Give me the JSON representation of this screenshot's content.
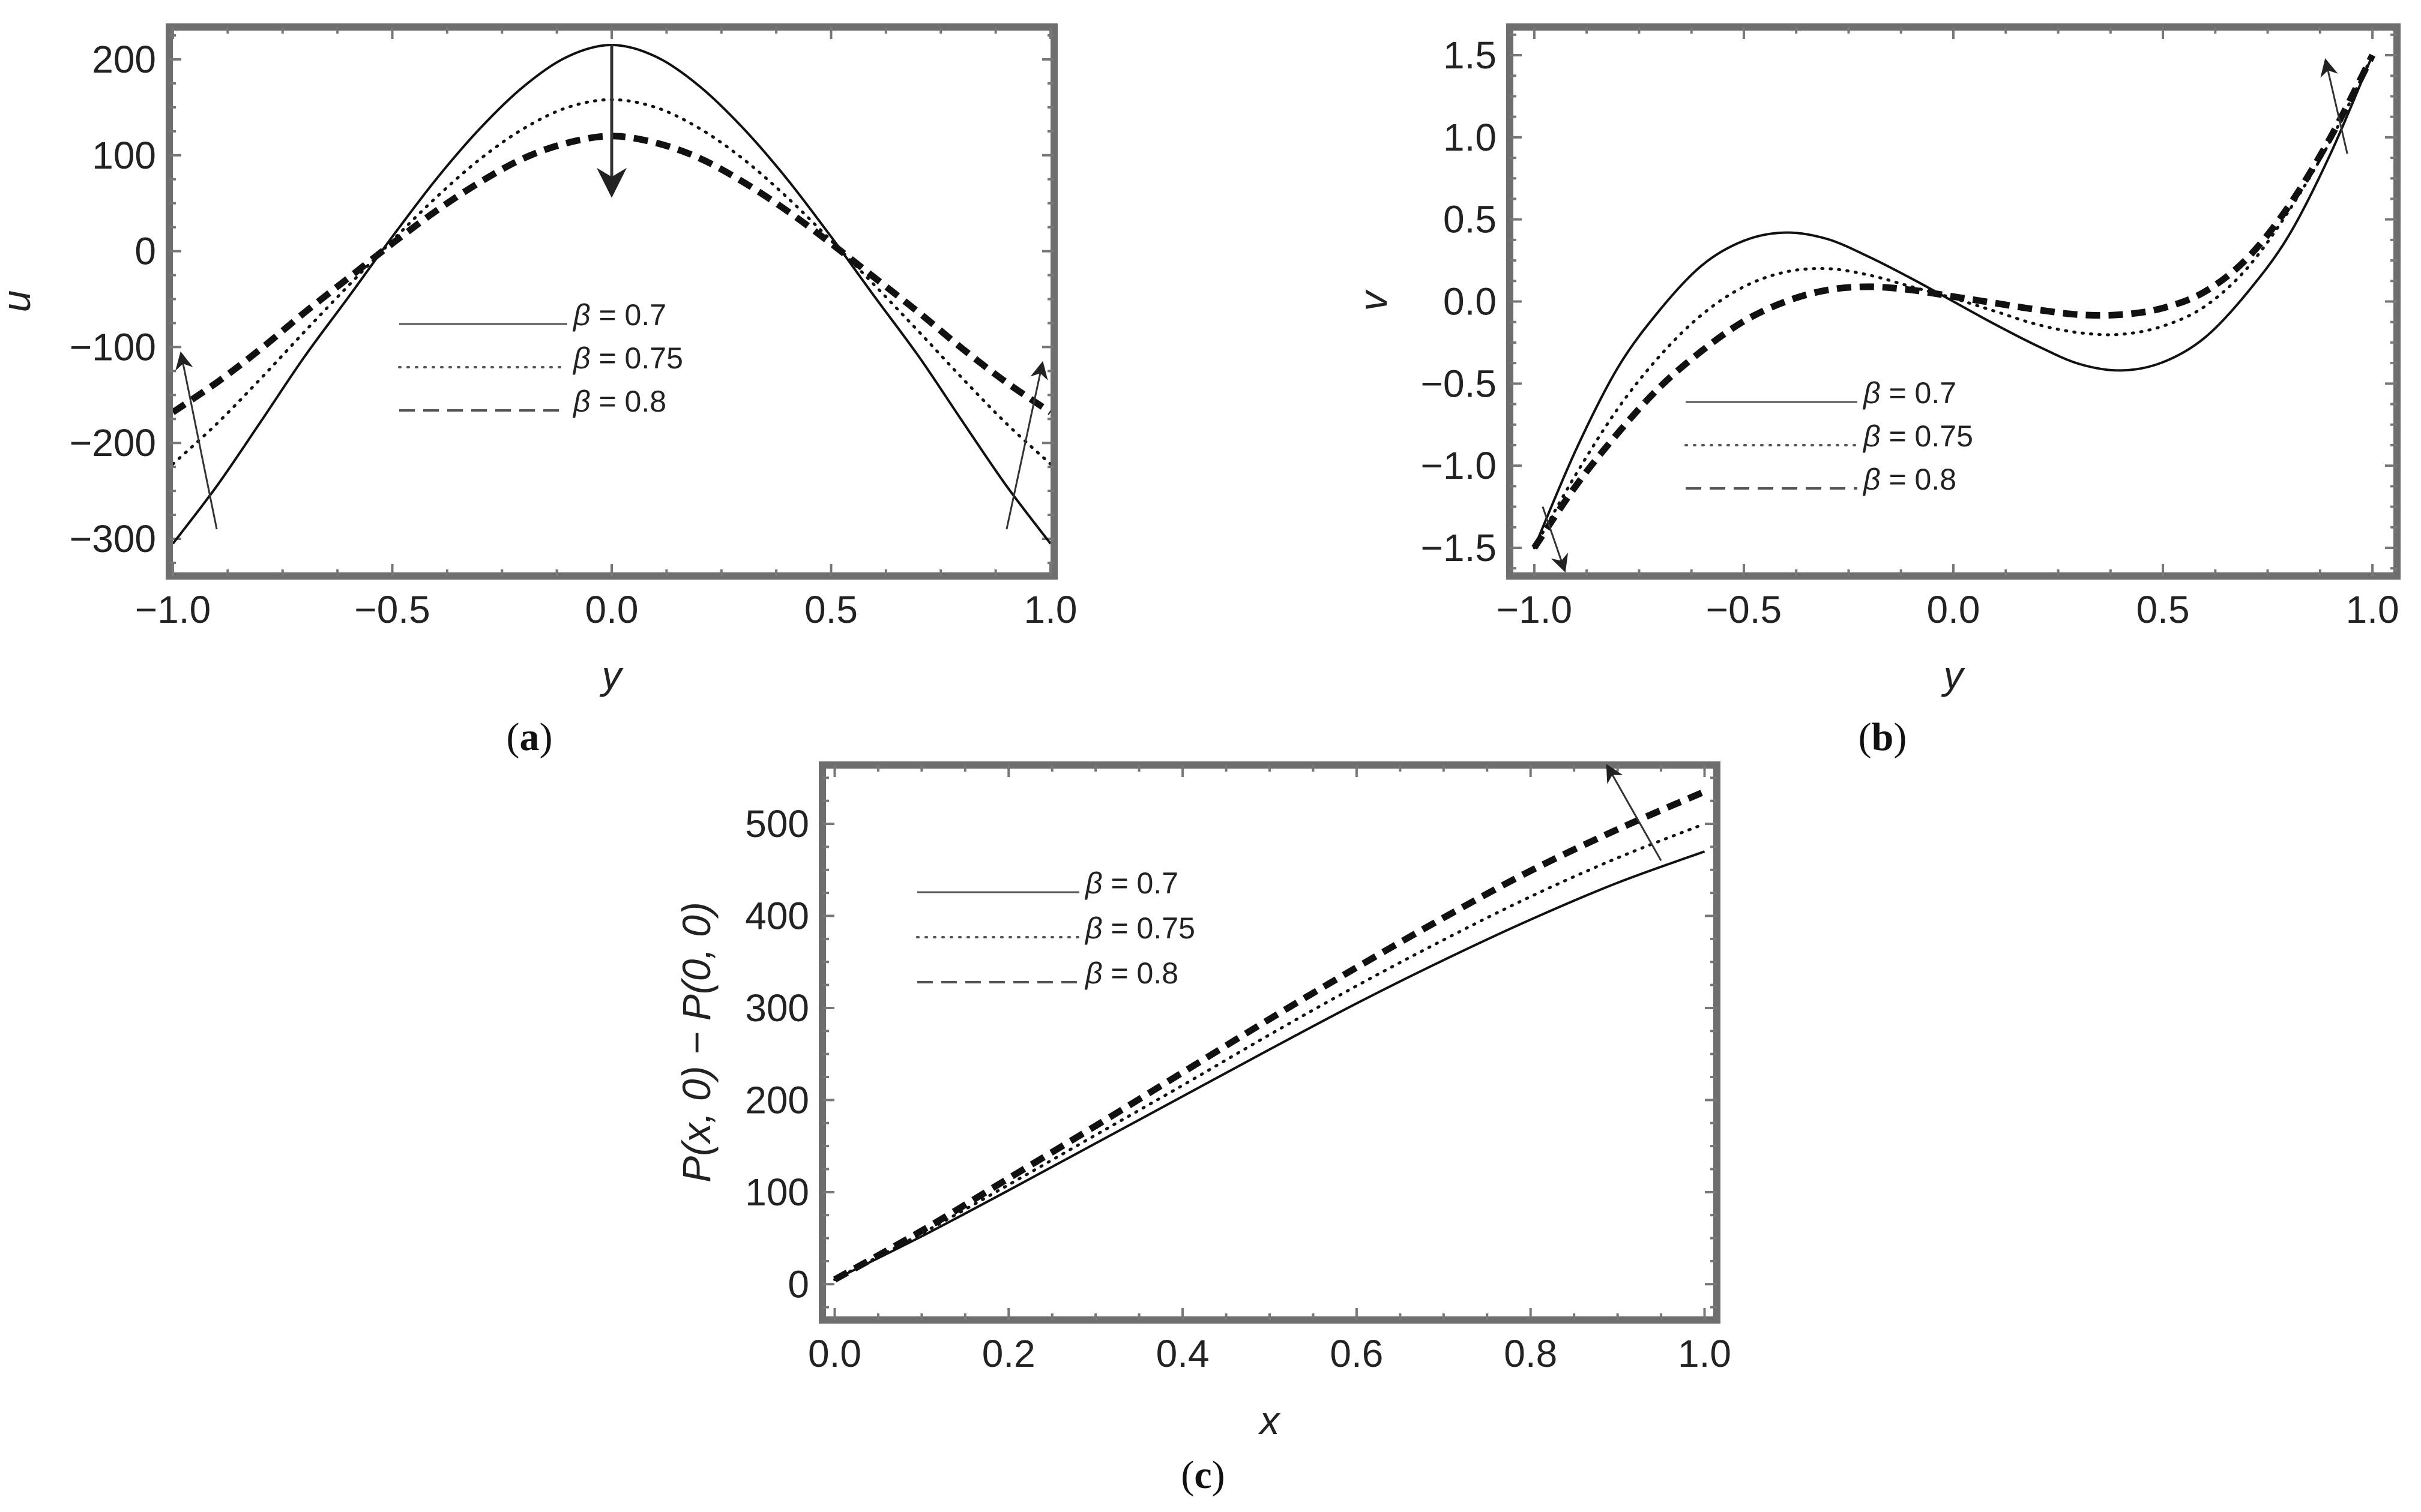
{
  "chart_data": [
    {
      "panel": "(a)",
      "type": "line",
      "xlabel": "y",
      "ylabel": "u",
      "xlim": [
        -1.0,
        1.0
      ],
      "ylim": [
        -335,
        230
      ],
      "xticks": [
        "−1.0",
        "−0.5",
        "0.0",
        "0.5",
        "1.0"
      ],
      "xtick_values": [
        -1.0,
        -0.5,
        0.0,
        0.5,
        1.0
      ],
      "yticks": [
        "−300",
        "−200",
        "−100",
        "0",
        "100",
        "200"
      ],
      "ytick_values": [
        -300,
        -200,
        -100,
        0,
        100,
        200
      ],
      "legend_position": "center",
      "grid": false,
      "series": [
        {
          "name": "β = 0.7",
          "style": "solid",
          "x": [
            -1.0,
            -0.9,
            -0.8,
            -0.7,
            -0.6,
            -0.5,
            -0.4,
            -0.3,
            -0.2,
            -0.1,
            0.0,
            0.1,
            0.2,
            0.3,
            0.4,
            0.5,
            0.6,
            0.7,
            0.8,
            0.9,
            1.0
          ],
          "y": [
            -305,
            -245,
            -178,
            -110,
            -48,
            15,
            75,
            128,
            172,
            203,
            215,
            203,
            172,
            128,
            75,
            15,
            -48,
            -110,
            -178,
            -245,
            -305
          ]
        },
        {
          "name": "β = 0.75",
          "style": "dotted",
          "x": [
            -1.0,
            -0.9,
            -0.8,
            -0.7,
            -0.6,
            -0.5,
            -0.4,
            -0.3,
            -0.2,
            -0.1,
            0.0,
            0.1,
            0.2,
            0.3,
            0.4,
            0.5,
            0.6,
            0.7,
            0.8,
            0.9,
            1.0
          ],
          "y": [
            -222,
            -180,
            -133,
            -84,
            -36,
            11,
            56,
            96,
            128,
            150,
            158,
            150,
            128,
            96,
            56,
            11,
            -36,
            -84,
            -133,
            -180,
            -222
          ]
        },
        {
          "name": "β = 0.8",
          "style": "dashed",
          "x": [
            -1.0,
            -0.9,
            -0.8,
            -0.7,
            -0.6,
            -0.5,
            -0.4,
            -0.3,
            -0.2,
            -0.1,
            0.0,
            0.1,
            0.2,
            0.3,
            0.4,
            0.5,
            0.6,
            0.7,
            0.8,
            0.9,
            1.0
          ],
          "y": [
            -168,
            -137,
            -102,
            -64,
            -28,
            8,
            42,
            72,
            97,
            113,
            120,
            113,
            97,
            72,
            42,
            8,
            -28,
            -64,
            -102,
            -137,
            -168
          ]
        }
      ],
      "annotations": [
        {
          "type": "arrow",
          "direction": "down",
          "from": [
            0.0,
            215
          ],
          "to": [
            0.0,
            65
          ]
        },
        {
          "type": "arrow",
          "direction": "up",
          "from": [
            -0.9,
            -290
          ],
          "to": [
            -0.98,
            -110
          ]
        },
        {
          "type": "arrow",
          "direction": "up",
          "from": [
            0.9,
            -290
          ],
          "to": [
            0.98,
            -120
          ]
        }
      ]
    },
    {
      "panel": "(b)",
      "type": "line",
      "xlabel": "y",
      "ylabel": "v",
      "xlim": [
        -1.05,
        1.05
      ],
      "ylim": [
        -1.65,
        1.65
      ],
      "xticks": [
        "−1.0",
        "−0.5",
        "0.0",
        "0.5",
        "1.0"
      ],
      "xtick_values": [
        -1.0,
        -0.5,
        0.0,
        0.5,
        1.0
      ],
      "yticks": [
        "−1.5",
        "−1.0",
        "−0.5",
        "0.0",
        "0.5",
        "1.0",
        "1.5"
      ],
      "ytick_values": [
        -1.5,
        -1.0,
        -0.5,
        0.0,
        0.5,
        1.0,
        1.5
      ],
      "legend_position": "center-left",
      "grid": false,
      "series": [
        {
          "name": "β = 0.7",
          "style": "solid",
          "x": [
            -1.0,
            -0.9,
            -0.8,
            -0.7,
            -0.6,
            -0.5,
            -0.4,
            -0.3,
            -0.2,
            -0.1,
            0.0,
            0.1,
            0.2,
            0.3,
            0.4,
            0.5,
            0.6,
            0.7,
            0.8,
            0.9,
            1.0
          ],
          "y": [
            -1.5,
            -0.9,
            -0.4,
            -0.05,
            0.22,
            0.37,
            0.42,
            0.38,
            0.27,
            0.14,
            0.0,
            -0.14,
            -0.27,
            -0.38,
            -0.42,
            -0.37,
            -0.22,
            0.05,
            0.4,
            0.9,
            1.5
          ]
        },
        {
          "name": "β = 0.75",
          "style": "dotted",
          "x": [
            -1.0,
            -0.9,
            -0.8,
            -0.7,
            -0.6,
            -0.5,
            -0.4,
            -0.3,
            -0.2,
            -0.1,
            0.0,
            0.1,
            0.2,
            0.3,
            0.4,
            0.5,
            0.6,
            0.7,
            0.8,
            0.9,
            1.0
          ],
          "y": [
            -1.5,
            -1.05,
            -0.65,
            -0.33,
            -0.08,
            0.09,
            0.18,
            0.2,
            0.16,
            0.09,
            0.02,
            -0.06,
            -0.14,
            -0.19,
            -0.2,
            -0.15,
            -0.03,
            0.2,
            0.55,
            0.98,
            1.5
          ]
        },
        {
          "name": "β = 0.8",
          "style": "dashed",
          "x": [
            -1.0,
            -0.9,
            -0.8,
            -0.7,
            -0.6,
            -0.5,
            -0.4,
            -0.3,
            -0.2,
            -0.1,
            0.0,
            0.1,
            0.2,
            0.3,
            0.4,
            0.5,
            0.6,
            0.7,
            0.8,
            0.9,
            1.0
          ],
          "y": [
            -1.5,
            -1.12,
            -0.8,
            -0.52,
            -0.3,
            -0.12,
            0.0,
            0.07,
            0.09,
            0.07,
            0.03,
            -0.01,
            -0.05,
            -0.08,
            -0.08,
            -0.04,
            0.06,
            0.26,
            0.58,
            1.0,
            1.5
          ]
        }
      ],
      "annotations": [
        {
          "type": "arrow",
          "direction": "down",
          "from": [
            -0.98,
            -1.25
          ],
          "to": [
            -0.93,
            -1.62
          ]
        },
        {
          "type": "arrow",
          "direction": "up",
          "from": [
            0.94,
            0.9
          ],
          "to": [
            0.89,
            1.45
          ]
        }
      ]
    },
    {
      "panel": "(c)",
      "type": "line",
      "xlabel": "x",
      "ylabel": "P(x, 0) − P(0, 0)",
      "xlim": [
        -0.01,
        1.01
      ],
      "ylim": [
        -35,
        560
      ],
      "xticks": [
        "0.0",
        "0.2",
        "0.4",
        "0.6",
        "0.8",
        "1.0"
      ],
      "xtick_values": [
        0.0,
        0.2,
        0.4,
        0.6,
        0.8,
        1.0
      ],
      "yticks": [
        "0",
        "100",
        "200",
        "300",
        "400",
        "500"
      ],
      "ytick_values": [
        0,
        100,
        200,
        300,
        400,
        500
      ],
      "legend_position": "top-left",
      "grid": false,
      "series": [
        {
          "name": "β = 0.7",
          "style": "solid",
          "x": [
            0.0,
            0.1,
            0.2,
            0.3,
            0.4,
            0.5,
            0.6,
            0.7,
            0.8,
            0.9,
            1.0
          ],
          "y": [
            5,
            52,
            102,
            153,
            204,
            255,
            305,
            352,
            396,
            436,
            470
          ]
        },
        {
          "name": "β = 0.75",
          "style": "dotted",
          "x": [
            0.0,
            0.1,
            0.2,
            0.3,
            0.4,
            0.5,
            0.6,
            0.7,
            0.8,
            0.9,
            1.0
          ],
          "y": [
            5,
            55,
            108,
            162,
            216,
            271,
            324,
            374,
            421,
            463,
            500
          ]
        },
        {
          "name": "β = 0.8",
          "style": "dashed",
          "x": [
            0.0,
            0.1,
            0.2,
            0.3,
            0.4,
            0.5,
            0.6,
            0.7,
            0.8,
            0.9,
            1.0
          ],
          "y": [
            5,
            58,
            115,
            172,
            230,
            288,
            344,
            398,
            449,
            494,
            535
          ]
        }
      ],
      "annotations": [
        {
          "type": "arrow",
          "direction": "up",
          "from": [
            0.95,
            460
          ],
          "to": [
            0.89,
            560
          ]
        }
      ]
    }
  ]
}
